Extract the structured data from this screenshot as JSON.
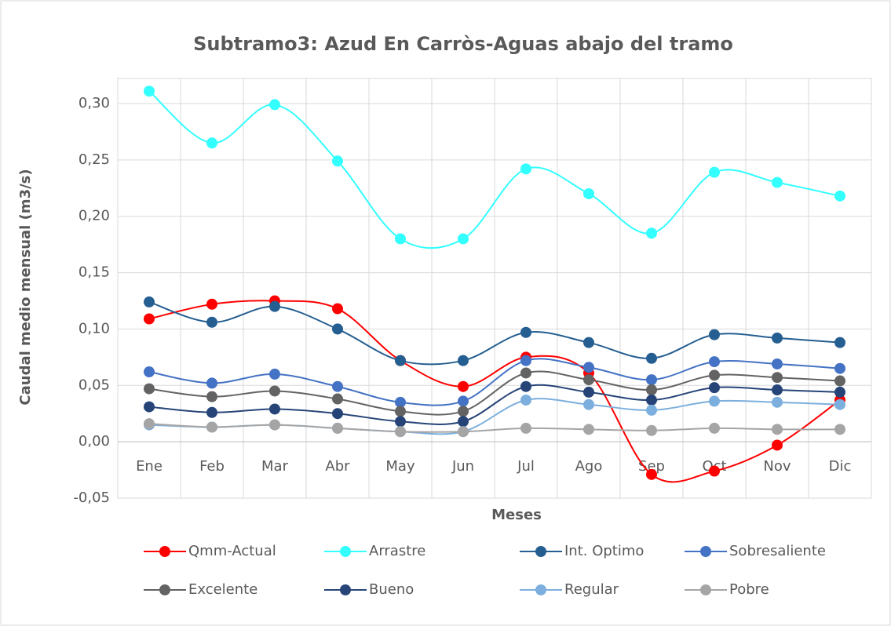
{
  "chart_data": {
    "type": "line",
    "title": "Subtramo3: Azud En Carròs-Aguas abajo del tramo",
    "x_label": "Meses",
    "y_label": "Caudal medio mensual (m3/s)",
    "categories": [
      "Ene",
      "Feb",
      "Mar",
      "Abr",
      "May",
      "Jun",
      "Jul",
      "Ago",
      "Sep",
      "Oct",
      "Nov",
      "Dic"
    ],
    "ylim": [
      -0.05,
      0.3
    ],
    "yticks": [
      {
        "value": -0.05,
        "label": "-0,05"
      },
      {
        "value": 0,
        "label": "0,00"
      },
      {
        "value": 0.05,
        "label": "0,05"
      },
      {
        "value": 0.1,
        "label": "0,10"
      },
      {
        "value": 0.15,
        "label": "0,15"
      },
      {
        "value": 0.2,
        "label": "0,20"
      },
      {
        "value": 0.25,
        "label": "0,25"
      },
      {
        "value": 0.3,
        "label": "0,30"
      }
    ],
    "grid": true,
    "smooth": true,
    "legend": "bottom",
    "series": [
      {
        "name": "Qmm-Actual",
        "color": "#ff0000",
        "values": [
          0.109,
          0.122,
          0.125,
          0.118,
          0.072,
          0.049,
          0.075,
          0.061,
          -0.029,
          -0.026,
          -0.003,
          0.037
        ]
      },
      {
        "name": "Arrastre",
        "color": "#33ffff",
        "values": [
          0.311,
          0.265,
          0.299,
          0.249,
          0.18,
          0.18,
          0.242,
          0.22,
          0.185,
          0.239,
          0.23,
          0.218
        ]
      },
      {
        "name": "Int. Optimo",
        "color": "#255e91",
        "values": [
          0.124,
          0.106,
          0.12,
          0.1,
          0.072,
          0.072,
          0.097,
          0.088,
          0.074,
          0.095,
          0.092,
          0.088
        ]
      },
      {
        "name": "Sobresaliente",
        "color": "#4472c4",
        "values": [
          0.062,
          0.052,
          0.06,
          0.049,
          0.035,
          0.036,
          0.072,
          0.066,
          0.055,
          0.071,
          0.069,
          0.065
        ]
      },
      {
        "name": "Excelente",
        "color": "#636363",
        "values": [
          0.047,
          0.04,
          0.045,
          0.038,
          0.027,
          0.027,
          0.061,
          0.055,
          0.046,
          0.059,
          0.057,
          0.054
        ]
      },
      {
        "name": "Bueno",
        "color": "#264478",
        "values": [
          0.031,
          0.026,
          0.029,
          0.025,
          0.018,
          0.018,
          0.049,
          0.044,
          0.037,
          0.048,
          0.046,
          0.044
        ]
      },
      {
        "name": "Regular",
        "color": "#7cafdd",
        "values": [
          0.015,
          0.013,
          0.015,
          0.012,
          0.009,
          0.009,
          0.037,
          0.033,
          0.028,
          0.036,
          0.035,
          0.033
        ]
      },
      {
        "name": "Pobre",
        "color": "#a5a5a5",
        "values": [
          0.016,
          0.013,
          0.015,
          0.012,
          0.009,
          0.009,
          0.012,
          0.011,
          0.01,
          0.012,
          0.011,
          0.011
        ]
      }
    ]
  }
}
